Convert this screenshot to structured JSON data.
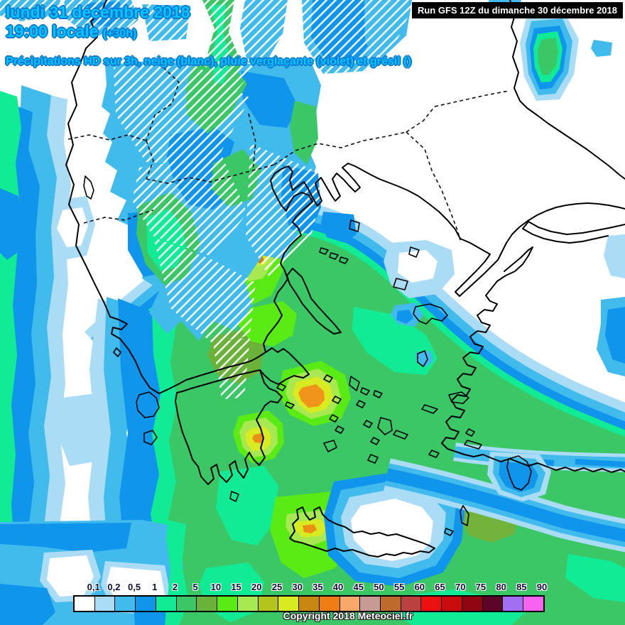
{
  "header": {
    "line1": "lundi 31 décembre 2018",
    "line2": "19:00 locale",
    "line2_suffix": "(+30h)",
    "line3": "Précipitations HD sur 3h, neige (blanc), pluie verglaçante (violet) et grésil ()"
  },
  "run_info": {
    "label": "Run GFS 12Z du dimanche 30 décembre 2018"
  },
  "legend": {
    "labels": [
      "0,1",
      "0,2",
      "0,5",
      "1",
      "2",
      "5",
      "10",
      "15",
      "20",
      "25",
      "30",
      "35",
      "40",
      "45",
      "50",
      "55",
      "60",
      "65",
      "70",
      "75",
      "80",
      "85",
      "90"
    ],
    "colors": [
      "#ffffff",
      "#aadcf5",
      "#41baec",
      "#1095ec",
      "#12eb96",
      "#3cc767",
      "#6ab23a",
      "#5beb14",
      "#a8e952",
      "#b3c41d",
      "#d8eb20",
      "#c8870e",
      "#ee7d15",
      "#f8a868",
      "#c69b94",
      "#bd6a2c",
      "#bb4040",
      "#ec1010",
      "#c90d0d",
      "#8f0612",
      "#5d0528",
      "#a06ff2",
      "#f763ef"
    ]
  },
  "footer": {
    "copyright": "Copyright 2018 Meteociel.fr"
  },
  "map": {
    "background_color": "#ffffff",
    "coastline_color": "#000000",
    "snow_hatch_color": "#ffffff",
    "heavy_precip_core_color": "#f0941a"
  }
}
